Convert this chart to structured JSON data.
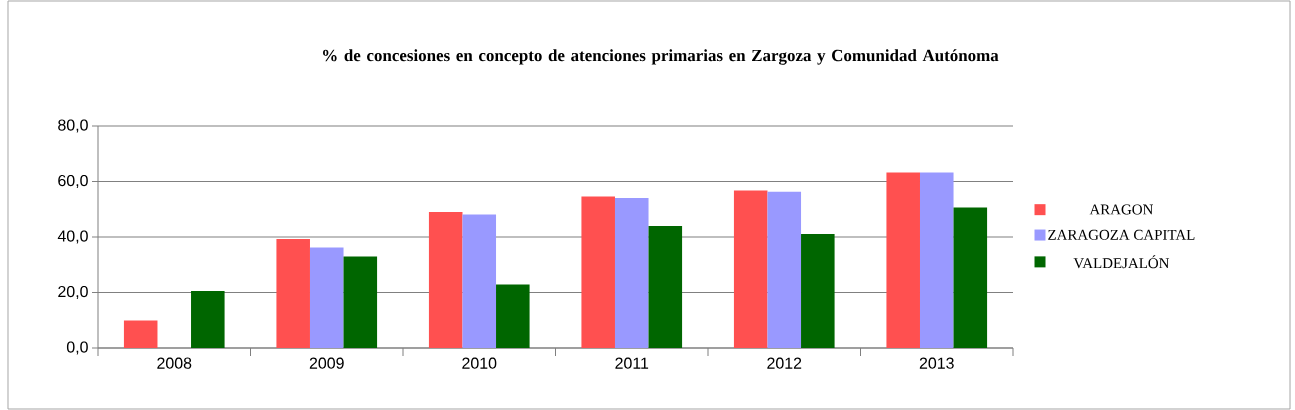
{
  "chart_data": {
    "type": "bar",
    "title": "% de concesiones en concepto de atenciones primarias en Zargoza y Comunidad Autónoma",
    "categories": [
      "2008",
      "2009",
      "2010",
      "2011",
      "2012",
      "2013"
    ],
    "series": [
      {
        "name": "ARAGON",
        "color": "#ff5050",
        "values": [
          9.9,
          39.3,
          49.0,
          54.6,
          56.8,
          63.2
        ]
      },
      {
        "name": "ZARAGOZA CAPITAL",
        "color": "#9999ff",
        "values": [
          null,
          36.2,
          48.1,
          54.1,
          56.3,
          63.2
        ]
      },
      {
        "name": "VALDEJALÓN",
        "color": "#006600",
        "values": [
          20.5,
          33.0,
          22.9,
          44.0,
          41.1,
          50.6
        ]
      }
    ],
    "ylim": [
      0,
      80
    ],
    "yticks": [
      {
        "value": 0,
        "label": "0,0"
      },
      {
        "value": 20,
        "label": "20,0"
      },
      {
        "value": 40,
        "label": "40,0"
      },
      {
        "value": 60,
        "label": "60,0"
      },
      {
        "value": 80,
        "label": "80,0"
      }
    ],
    "grid": "y",
    "legend": "right"
  }
}
